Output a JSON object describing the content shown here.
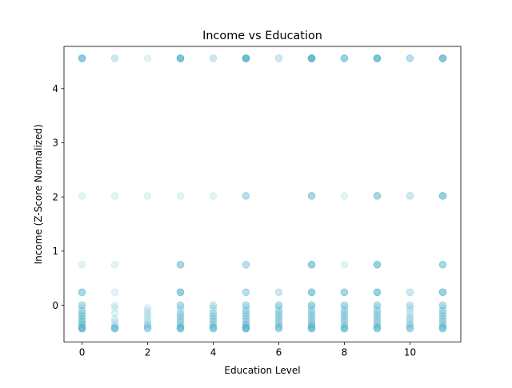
{
  "chart_data": {
    "type": "scatter",
    "title": "Income vs Education",
    "xlabel": "Education Level",
    "ylabel": "Income (Z-Score Normalized)",
    "xlim": [
      -0.55,
      11.55
    ],
    "ylim": [
      -0.68,
      4.78
    ],
    "xticks": [
      0,
      2,
      4,
      6,
      8,
      10
    ],
    "yticks": [
      0,
      1,
      2,
      3,
      4
    ],
    "grid": false,
    "marker_color": "#4bacc6",
    "marker_alpha": 0.15,
    "y_levels": [
      4.56,
      2.02,
      0.75,
      0.24,
      0.0,
      -0.05,
      -0.1,
      -0.15,
      -0.2,
      -0.25,
      -0.3,
      -0.35,
      -0.4,
      -0.43
    ],
    "series": [
      {
        "x": [
          0,
          0,
          0,
          0,
          0,
          0,
          0,
          0,
          0,
          0,
          0,
          0,
          0,
          0,
          0,
          0,
          0,
          0,
          0,
          0,
          0,
          0,
          0,
          0,
          0,
          0,
          0,
          0,
          0,
          0,
          0,
          0,
          0,
          0,
          0,
          0,
          0,
          0,
          0,
          0
        ],
        "y": [
          4.56,
          4.56,
          4.56,
          4.56,
          4.56,
          4.56,
          2.02,
          0.75,
          0.24,
          0.24,
          0.24,
          0.24,
          0.0,
          0.0,
          0.0,
          -0.05,
          -0.1,
          -0.1,
          -0.15,
          -0.15,
          -0.2,
          -0.2,
          -0.2,
          -0.25,
          -0.25,
          -0.3,
          -0.3,
          -0.3,
          -0.35,
          -0.35,
          -0.35,
          -0.4,
          -0.4,
          -0.4,
          -0.43,
          -0.43,
          -0.43,
          -0.43,
          -0.43,
          -0.43
        ]
      },
      {
        "x": [
          1,
          1,
          1,
          1,
          1,
          1,
          1,
          1,
          1,
          1,
          1,
          1,
          1,
          1,
          1,
          1,
          1,
          1
        ],
        "y": [
          4.56,
          4.56,
          2.02,
          0.75,
          0.24,
          0.0,
          -0.05,
          -0.15,
          -0.25,
          -0.3,
          -0.35,
          -0.4,
          -0.4,
          -0.43,
          -0.43,
          -0.43,
          -0.43,
          -0.43
        ]
      },
      {
        "x": [
          2,
          2,
          2,
          2,
          2,
          2,
          2,
          2,
          2,
          2,
          2,
          2,
          2,
          2,
          2
        ],
        "y": [
          4.56,
          2.02,
          -0.05,
          -0.1,
          -0.15,
          -0.2,
          -0.25,
          -0.3,
          -0.35,
          -0.35,
          -0.4,
          -0.4,
          -0.43,
          -0.43,
          -0.43
        ]
      },
      {
        "x": [
          3,
          3,
          3,
          3,
          3,
          3,
          3,
          3,
          3,
          3,
          3,
          3,
          3,
          3,
          3,
          3,
          3,
          3,
          3,
          3,
          3,
          3,
          3,
          3,
          3,
          3,
          3,
          3,
          3,
          3,
          3,
          3,
          3,
          3,
          3,
          3,
          3,
          3,
          3,
          3,
          3
        ],
        "y": [
          4.56,
          4.56,
          4.56,
          4.56,
          4.56,
          4.56,
          4.56,
          4.56,
          2.02,
          0.75,
          0.75,
          0.75,
          0.75,
          0.24,
          0.24,
          0.24,
          0.24,
          0.24,
          0.0,
          0.0,
          0.0,
          -0.05,
          -0.1,
          -0.15,
          -0.15,
          -0.2,
          -0.2,
          -0.25,
          -0.25,
          -0.3,
          -0.3,
          -0.35,
          -0.35,
          -0.4,
          -0.4,
          -0.4,
          -0.43,
          -0.43,
          -0.43,
          -0.43,
          -0.43
        ]
      },
      {
        "x": [
          4,
          4,
          4,
          4,
          4,
          4,
          4,
          4,
          4,
          4,
          4,
          4,
          4,
          4,
          4,
          4,
          4,
          4,
          4,
          4,
          4,
          4,
          4,
          4
        ],
        "y": [
          4.56,
          4.56,
          2.02,
          0.0,
          0.0,
          -0.05,
          -0.1,
          -0.15,
          -0.15,
          -0.2,
          -0.2,
          -0.25,
          -0.25,
          -0.3,
          -0.3,
          -0.35,
          -0.35,
          -0.4,
          -0.4,
          -0.4,
          -0.43,
          -0.43,
          -0.43,
          -0.43
        ]
      },
      {
        "x": [
          5,
          5,
          5,
          5,
          5,
          5,
          5,
          5,
          5,
          5,
          5,
          5,
          5,
          5,
          5,
          5,
          5,
          5,
          5,
          5,
          5,
          5,
          5,
          5,
          5,
          5,
          5,
          5,
          5,
          5,
          5,
          5,
          5,
          5,
          5,
          5,
          5,
          5,
          5,
          5,
          5,
          5,
          5,
          5,
          5
        ],
        "y": [
          4.56,
          4.56,
          4.56,
          4.56,
          4.56,
          4.56,
          4.56,
          4.56,
          4.56,
          4.56,
          2.02,
          2.02,
          2.02,
          0.75,
          0.75,
          0.75,
          0.24,
          0.24,
          0.24,
          0.0,
          0.0,
          0.0,
          -0.05,
          -0.1,
          -0.1,
          -0.15,
          -0.15,
          -0.2,
          -0.2,
          -0.25,
          -0.25,
          -0.3,
          -0.3,
          -0.35,
          -0.35,
          -0.35,
          -0.4,
          -0.4,
          -0.4,
          -0.43,
          -0.43,
          -0.43,
          -0.43,
          -0.43,
          -0.43
        ]
      },
      {
        "x": [
          6,
          6,
          6,
          6,
          6,
          6,
          6,
          6,
          6,
          6,
          6,
          6,
          6,
          6,
          6,
          6,
          6,
          6,
          6,
          6,
          6,
          6,
          6,
          6,
          6,
          6
        ],
        "y": [
          4.56,
          4.56,
          0.24,
          0.24,
          0.0,
          0.0,
          0.0,
          -0.05,
          -0.1,
          -0.1,
          -0.15,
          -0.15,
          -0.2,
          -0.2,
          -0.25,
          -0.25,
          -0.3,
          -0.3,
          -0.35,
          -0.35,
          -0.4,
          -0.4,
          -0.4,
          -0.43,
          -0.43,
          -0.43
        ]
      },
      {
        "x": [
          7,
          7,
          7,
          7,
          7,
          7,
          7,
          7,
          7,
          7,
          7,
          7,
          7,
          7,
          7,
          7,
          7,
          7,
          7,
          7,
          7,
          7,
          7,
          7,
          7,
          7,
          7,
          7,
          7,
          7,
          7,
          7,
          7,
          7,
          7,
          7,
          7,
          7,
          7,
          7,
          7,
          7,
          7,
          7,
          7,
          7,
          7,
          7,
          7,
          7
        ],
        "y": [
          4.56,
          4.56,
          4.56,
          4.56,
          4.56,
          4.56,
          4.56,
          4.56,
          4.56,
          4.56,
          2.02,
          2.02,
          2.02,
          2.02,
          0.75,
          0.75,
          0.75,
          0.75,
          0.75,
          0.24,
          0.24,
          0.24,
          0.24,
          0.24,
          0.0,
          0.0,
          0.0,
          0.0,
          -0.05,
          -0.1,
          -0.1,
          -0.15,
          -0.15,
          -0.2,
          -0.2,
          -0.25,
          -0.25,
          -0.3,
          -0.3,
          -0.35,
          -0.35,
          -0.35,
          -0.4,
          -0.4,
          -0.4,
          -0.43,
          -0.43,
          -0.43,
          -0.43,
          -0.43
        ]
      },
      {
        "x": [
          8,
          8,
          8,
          8,
          8,
          8,
          8,
          8,
          8,
          8,
          8,
          8,
          8,
          8,
          8,
          8,
          8,
          8,
          8,
          8,
          8,
          8,
          8,
          8,
          8,
          8,
          8,
          8,
          8,
          8,
          8,
          8,
          8,
          8
        ],
        "y": [
          4.56,
          4.56,
          4.56,
          4.56,
          4.56,
          2.02,
          0.75,
          0.24,
          0.24,
          0.24,
          0.24,
          0.0,
          0.0,
          0.0,
          -0.05,
          -0.1,
          -0.1,
          -0.15,
          -0.15,
          -0.2,
          -0.2,
          -0.25,
          -0.25,
          -0.3,
          -0.3,
          -0.35,
          -0.35,
          -0.4,
          -0.4,
          -0.43,
          -0.43,
          -0.43,
          -0.43,
          -0.43
        ]
      },
      {
        "x": [
          9,
          9,
          9,
          9,
          9,
          9,
          9,
          9,
          9,
          9,
          9,
          9,
          9,
          9,
          9,
          9,
          9,
          9,
          9,
          9,
          9,
          9,
          9,
          9,
          9,
          9,
          9,
          9,
          9,
          9,
          9,
          9,
          9,
          9,
          9,
          9,
          9,
          9,
          9,
          9,
          9,
          9,
          9,
          9,
          9
        ],
        "y": [
          4.56,
          4.56,
          4.56,
          4.56,
          4.56,
          4.56,
          4.56,
          4.56,
          2.02,
          2.02,
          2.02,
          2.02,
          0.75,
          0.75,
          0.75,
          0.75,
          0.75,
          0.24,
          0.24,
          0.24,
          0.24,
          0.24,
          0.0,
          0.0,
          0.0,
          -0.05,
          -0.1,
          -0.1,
          -0.15,
          -0.15,
          -0.2,
          -0.2,
          -0.25,
          -0.25,
          -0.3,
          -0.3,
          -0.35,
          -0.35,
          -0.4,
          -0.4,
          -0.4,
          -0.43,
          -0.43,
          -0.43,
          -0.43
        ]
      },
      {
        "x": [
          10,
          10,
          10,
          10,
          10,
          10,
          10,
          10,
          10,
          10,
          10,
          10,
          10,
          10,
          10,
          10,
          10,
          10,
          10,
          10,
          10,
          10,
          10
        ],
        "y": [
          4.56,
          4.56,
          4.56,
          2.02,
          2.02,
          0.24,
          0.24,
          0.0,
          0.0,
          -0.05,
          -0.1,
          -0.15,
          -0.2,
          -0.25,
          -0.25,
          -0.3,
          -0.35,
          -0.35,
          -0.4,
          -0.4,
          -0.43,
          -0.43,
          -0.43
        ]
      },
      {
        "x": [
          11,
          11,
          11,
          11,
          11,
          11,
          11,
          11,
          11,
          11,
          11,
          11,
          11,
          11,
          11,
          11,
          11,
          11,
          11,
          11,
          11,
          11,
          11,
          11,
          11,
          11,
          11,
          11,
          11,
          11,
          11,
          11,
          11,
          11,
          11,
          11,
          11,
          11,
          11,
          11,
          11,
          11,
          11,
          11
        ],
        "y": [
          4.56,
          4.56,
          4.56,
          4.56,
          4.56,
          4.56,
          4.56,
          2.02,
          2.02,
          2.02,
          2.02,
          2.02,
          0.75,
          0.75,
          0.75,
          0.75,
          0.24,
          0.24,
          0.24,
          0.24,
          0.24,
          0.0,
          0.0,
          0.0,
          -0.05,
          -0.1,
          -0.1,
          -0.15,
          -0.15,
          -0.2,
          -0.2,
          -0.25,
          -0.25,
          -0.3,
          -0.3,
          -0.35,
          -0.35,
          -0.4,
          -0.4,
          -0.4,
          -0.43,
          -0.43,
          -0.43,
          -0.43
        ]
      }
    ]
  }
}
